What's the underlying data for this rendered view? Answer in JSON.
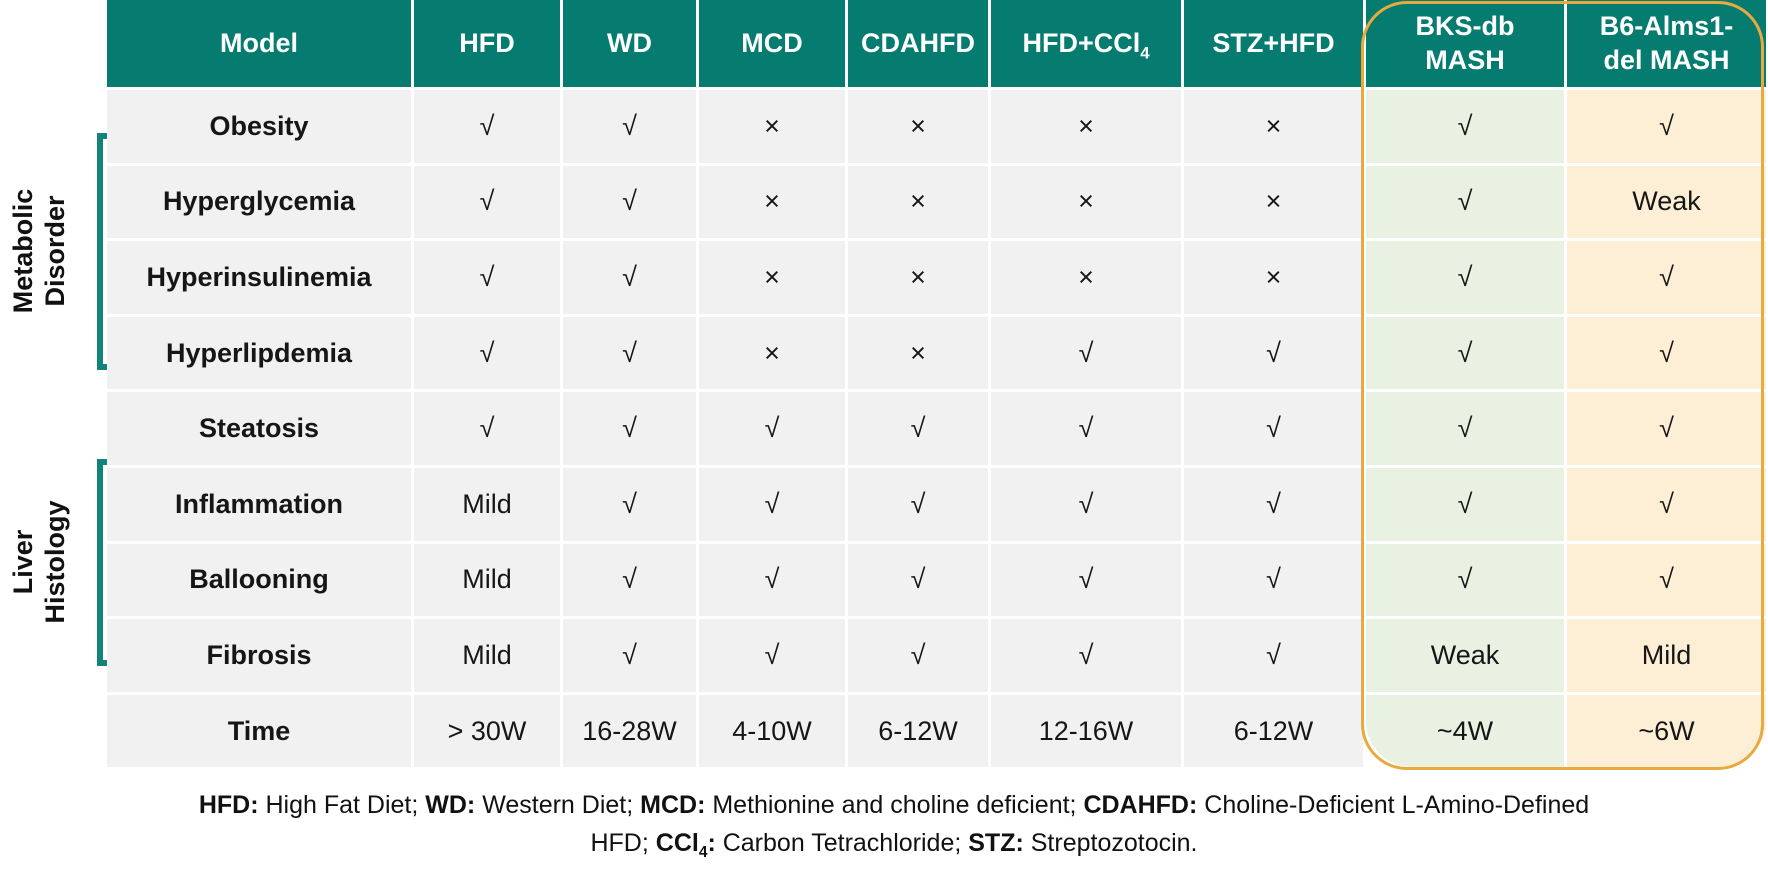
{
  "colors": {
    "header_teal": "#067c70",
    "bracket_teal": "#12837a",
    "highlight_orange": "#e8a93e",
    "col_bks_green": "#e9f1e3",
    "col_b6_cream": "#fdeed6",
    "cell_gray": "#f1f1f1",
    "header_text": "#ffffff",
    "body_text": "#161616"
  },
  "side_labels": [
    {
      "lines": [
        "Metabolic",
        "Disorder"
      ]
    },
    {
      "lines": [
        "Liver",
        "Histology"
      ]
    }
  ],
  "table": {
    "columns": [
      {
        "lines": [
          "Model"
        ]
      },
      {
        "lines": [
          "HFD"
        ]
      },
      {
        "lines": [
          "WD"
        ]
      },
      {
        "lines": [
          "MCD"
        ]
      },
      {
        "lines": [
          "CDAHFD"
        ]
      },
      {
        "lines": [
          "HFD+CCl"
        ],
        "sub": "4"
      },
      {
        "lines": [
          "STZ+HFD"
        ]
      },
      {
        "lines": [
          "BKS-db",
          "MASH"
        ]
      },
      {
        "lines": [
          "B6-Alms1-",
          "del MASH"
        ]
      }
    ],
    "rows": [
      {
        "label": "Obesity",
        "values": [
          "√",
          "√",
          "×",
          "×",
          "×",
          "×",
          "√",
          "√"
        ]
      },
      {
        "label": "Hyperglycemia",
        "values": [
          "√",
          "√",
          "×",
          "×",
          "×",
          "×",
          "√",
          "Weak"
        ]
      },
      {
        "label": "Hyperinsulinemia",
        "values": [
          "√",
          "√",
          "×",
          "×",
          "×",
          "×",
          "√",
          "√"
        ]
      },
      {
        "label": "Hyperlipdemia",
        "values": [
          "√",
          "√",
          "×",
          "×",
          "√",
          "√",
          "√",
          "√"
        ]
      },
      {
        "label": "Steatosis",
        "values": [
          "√",
          "√",
          "√",
          "√",
          "√",
          "√",
          "√",
          "√"
        ]
      },
      {
        "label": "Inflammation",
        "values": [
          "Mild",
          "√",
          "√",
          "√",
          "√",
          "√",
          "√",
          "√"
        ]
      },
      {
        "label": "Ballooning",
        "values": [
          "Mild",
          "√",
          "√",
          "√",
          "√",
          "√",
          "√",
          "√"
        ]
      },
      {
        "label": "Fibrosis",
        "values": [
          "Mild",
          "√",
          "√",
          "√",
          "√",
          "√",
          "Weak",
          "Mild"
        ]
      },
      {
        "label": "Time",
        "values": [
          "> 30W",
          "16-28W",
          "4-10W",
          "6-12W",
          "12-16W",
          "6-12W",
          "~4W",
          "~6W"
        ]
      }
    ]
  },
  "footnote": {
    "line1": [
      {
        "t": "HFD:",
        "b": true
      },
      {
        "t": " High Fat Diet; "
      },
      {
        "t": "WD:",
        "b": true
      },
      {
        "t": " Western Diet; "
      },
      {
        "t": "MCD:",
        "b": true
      },
      {
        "t": " Methionine and choline deficient; "
      },
      {
        "t": "CDAHFD:",
        "b": true
      },
      {
        "t": " Choline-Deficient  L-Amino-Defined"
      }
    ],
    "line2": [
      {
        "t": "HFD; "
      },
      {
        "t": "CCl",
        "b": true
      },
      {
        "t": "4",
        "b": true,
        "sub": true
      },
      {
        "t": ":",
        "b": true
      },
      {
        "t": " Carbon Tetrachloride; "
      },
      {
        "t": "STZ:",
        "b": true
      },
      {
        "t": " Streptozotocin."
      }
    ]
  }
}
